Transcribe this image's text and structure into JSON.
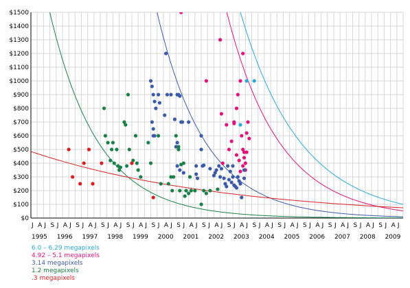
{
  "chart_data": {
    "type": "scatter",
    "title": "",
    "xlabel": "",
    "ylabel": "",
    "xlim": [
      1995.0,
      2009.75
    ],
    "ylim": [
      0,
      1500
    ],
    "grid": true,
    "legend_placement": "bottom-left",
    "y_ticks": [
      "$0",
      "$100",
      "$200",
      "$300",
      "$400",
      "$500",
      "$600",
      "$700",
      "$800",
      "$900",
      "$1000",
      "$1100",
      "$1200",
      "$1300",
      "$1400",
      "$1500"
    ],
    "x_ticks_months": [
      "J",
      "A",
      "J",
      "S"
    ],
    "x_ticks_years": [
      "1995",
      "1996",
      "1997",
      "1998",
      "1999",
      "2000",
      "2001",
      "2002",
      "2003",
      "2004",
      "2005",
      "2006",
      "2007",
      "2008",
      "2009"
    ],
    "series": [
      {
        "name": "6.0 – 6.29 megapixels",
        "color": "#2aa8d8",
        "points": [
          [
            2003.3,
            680
          ],
          [
            2003.55,
            1000
          ],
          [
            2003.85,
            1000
          ]
        ],
        "trend": {
          "a": 3200,
          "k": 0.42,
          "t0": 2001.5
        }
      },
      {
        "name": "4.92 – 5.1 megapixels",
        "color": "#e0147c",
        "points": [
          [
            2000.95,
            1500
          ],
          [
            2001.95,
            1000
          ],
          [
            2002.5,
            1300
          ],
          [
            2002.55,
            760
          ],
          [
            2002.6,
            400
          ],
          [
            2002.75,
            680
          ],
          [
            2002.95,
            560
          ],
          [
            2003.05,
            700
          ],
          [
            2003.05,
            690
          ],
          [
            2003.15,
            800
          ],
          [
            2003.2,
            900
          ],
          [
            2003.3,
            1000
          ],
          [
            2003.4,
            1200
          ],
          [
            2003.4,
            500
          ],
          [
            2003.45,
            480
          ],
          [
            2003.45,
            440
          ],
          [
            2003.5,
            400
          ],
          [
            2003.5,
            350
          ],
          [
            2003.55,
            480
          ],
          [
            2003.55,
            620
          ],
          [
            2003.6,
            700
          ],
          [
            2003.65,
            580
          ],
          [
            2003.35,
            600
          ],
          [
            2003.25,
            420
          ],
          [
            2003.4,
            380
          ],
          [
            2003.15,
            460
          ],
          [
            2003.3,
            340
          ],
          [
            2002.85,
            500
          ]
        ],
        "trend": {
          "a": 2750,
          "k": 0.48,
          "t0": 2001.5
        }
      },
      {
        "name": "3.14 megapixels",
        "color": "#3b5ba8",
        "points": [
          [
            1999.75,
            1000
          ],
          [
            1999.8,
            960
          ],
          [
            1999.85,
            900
          ],
          [
            1999.9,
            850
          ],
          [
            1999.95,
            800
          ],
          [
            1999.8,
            700
          ],
          [
            1999.85,
            650
          ],
          [
            1999.85,
            600
          ],
          [
            1999.9,
            600
          ],
          [
            2000.05,
            900
          ],
          [
            2000.1,
            840
          ],
          [
            2000.3,
            750
          ],
          [
            2000.35,
            1200
          ],
          [
            2000.4,
            900
          ],
          [
            2000.55,
            900
          ],
          [
            2000.7,
            720
          ],
          [
            2000.8,
            900
          ],
          [
            2000.85,
            900
          ],
          [
            2000.9,
            890
          ],
          [
            2000.95,
            700
          ],
          [
            2001.0,
            700
          ],
          [
            2000.8,
            550
          ],
          [
            2000.75,
            520
          ],
          [
            2000.8,
            380
          ],
          [
            2000.9,
            350
          ],
          [
            2001.05,
            330
          ],
          [
            2001.25,
            700
          ],
          [
            2001.55,
            380
          ],
          [
            2001.55,
            320
          ],
          [
            2001.6,
            290
          ],
          [
            2001.75,
            500
          ],
          [
            2001.75,
            600
          ],
          [
            2001.8,
            380
          ],
          [
            2001.85,
            385
          ],
          [
            2002.1,
            360
          ],
          [
            2002.25,
            310
          ],
          [
            2002.3,
            330
          ],
          [
            2002.35,
            350
          ],
          [
            2002.45,
            380
          ],
          [
            2002.5,
            300
          ],
          [
            2002.55,
            360
          ],
          [
            2002.65,
            290
          ],
          [
            2002.7,
            250
          ],
          [
            2002.75,
            230
          ],
          [
            2002.85,
            280
          ],
          [
            2002.95,
            260
          ],
          [
            2003.0,
            380
          ],
          [
            2003.0,
            300
          ],
          [
            2003.05,
            240
          ],
          [
            2003.1,
            230
          ],
          [
            2003.15,
            220
          ],
          [
            2003.2,
            300
          ],
          [
            2003.25,
            270
          ],
          [
            2003.3,
            250
          ],
          [
            2003.35,
            150
          ],
          [
            2003.45,
            350
          ],
          [
            2003.45,
            290
          ],
          [
            2002.8,
            380
          ],
          [
            2002.9,
            340
          ]
        ],
        "trend": {
          "a": 1500,
          "k": 0.52,
          "t0": 2000.0
        }
      },
      {
        "name": "1.2 megapixels",
        "color": "#1a8048",
        "points": [
          [
            1997.9,
            800
          ],
          [
            1997.95,
            600
          ],
          [
            1998.05,
            550
          ],
          [
            1998.15,
            420
          ],
          [
            1998.2,
            500
          ],
          [
            1998.25,
            550
          ],
          [
            1998.3,
            400
          ],
          [
            1998.4,
            500
          ],
          [
            1998.45,
            380
          ],
          [
            1998.5,
            350
          ],
          [
            1998.55,
            370
          ],
          [
            1998.7,
            700
          ],
          [
            1998.75,
            680
          ],
          [
            1998.8,
            380
          ],
          [
            1998.85,
            900
          ],
          [
            1998.9,
            500
          ],
          [
            1999.05,
            420
          ],
          [
            1999.15,
            600
          ],
          [
            1999.2,
            400
          ],
          [
            1999.25,
            350
          ],
          [
            1999.35,
            300
          ],
          [
            1999.65,
            550
          ],
          [
            1999.75,
            400
          ],
          [
            2000.05,
            600
          ],
          [
            2000.15,
            250
          ],
          [
            2000.45,
            250
          ],
          [
            2000.55,
            300
          ],
          [
            2000.65,
            300
          ],
          [
            2000.75,
            600
          ],
          [
            2000.85,
            500
          ],
          [
            2000.85,
            520
          ],
          [
            2000.9,
            200
          ],
          [
            2000.95,
            390
          ],
          [
            2001.05,
            400
          ],
          [
            2001.15,
            200
          ],
          [
            2001.25,
            180
          ],
          [
            2001.3,
            300
          ],
          [
            2001.35,
            200
          ],
          [
            2001.5,
            200
          ],
          [
            2001.75,
            100
          ],
          [
            2001.85,
            200
          ],
          [
            2001.95,
            180
          ],
          [
            2002.1,
            200
          ],
          [
            2002.4,
            210
          ],
          [
            2001.1,
            160
          ],
          [
            2000.6,
            200
          ]
        ],
        "trend": {
          "a": 1500,
          "k": 0.52,
          "t0": 1995.75
        }
      },
      {
        "name": ".3 megapixels",
        "color": "#d82020",
        "points": [
          [
            1996.5,
            500
          ],
          [
            1996.65,
            300
          ],
          [
            1996.95,
            250
          ],
          [
            1997.1,
            400
          ],
          [
            1997.3,
            500
          ],
          [
            1997.45,
            250
          ],
          [
            1997.8,
            400
          ],
          [
            1999.0,
            400
          ],
          [
            1999.85,
            150
          ]
        ],
        "trend": {
          "a": 485,
          "k": 0.127,
          "t0": 1995.0
        }
      }
    ]
  }
}
